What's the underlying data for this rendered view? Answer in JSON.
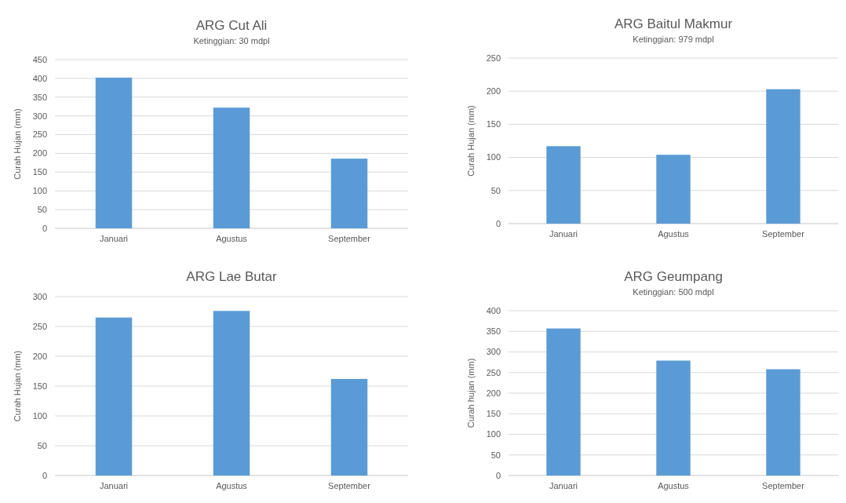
{
  "chart_data": [
    {
      "type": "bar",
      "title": "ARG Cut Ali",
      "subtitle": "Ketinggian: 30 mdpl",
      "ylabel": "Curah Hujan (mm)",
      "categories": [
        "Januari",
        "Agustus",
        "September"
      ],
      "values": [
        402,
        322,
        186
      ],
      "color": "#5b9bd5",
      "ylim": [
        0,
        450
      ],
      "yticks": [
        0,
        50,
        100,
        150,
        200,
        250,
        300,
        350,
        400,
        450
      ],
      "grid": "y"
    },
    {
      "type": "bar",
      "title": "ARG Baitul Makmur",
      "subtitle": "Ketinggian: 979 mdpl",
      "ylabel": "Curah Hujan (mm)",
      "categories": [
        "Januari",
        "Agustus",
        "September"
      ],
      "values": [
        117,
        104,
        203
      ],
      "color": "#5b9bd5",
      "ylim": [
        0,
        250
      ],
      "yticks": [
        0,
        50,
        100,
        150,
        200,
        250
      ],
      "grid": "y"
    },
    {
      "type": "bar",
      "title": "ARG Lae Butar",
      "ylabel": "Curah Hujan (mm)",
      "categories": [
        "Januari",
        "Agustus",
        "September"
      ],
      "values": [
        265,
        276,
        162
      ],
      "color": "#5b9bd5",
      "ylim": [
        0,
        300
      ],
      "yticks": [
        0,
        50,
        100,
        150,
        200,
        250,
        300
      ],
      "grid": "y"
    },
    {
      "type": "bar",
      "title": "ARG Geumpang",
      "subtitle": "Ketinggian: 500 mdpl",
      "ylabel": "Curah hujan (mm)",
      "categories": [
        "Januari",
        "Agustus",
        "September"
      ],
      "values": [
        357,
        279,
        258
      ],
      "color": "#5b9bd5",
      "ylim": [
        0,
        400
      ],
      "yticks": [
        0,
        50,
        100,
        150,
        200,
        250,
        300,
        350,
        400
      ],
      "grid": "y"
    }
  ]
}
